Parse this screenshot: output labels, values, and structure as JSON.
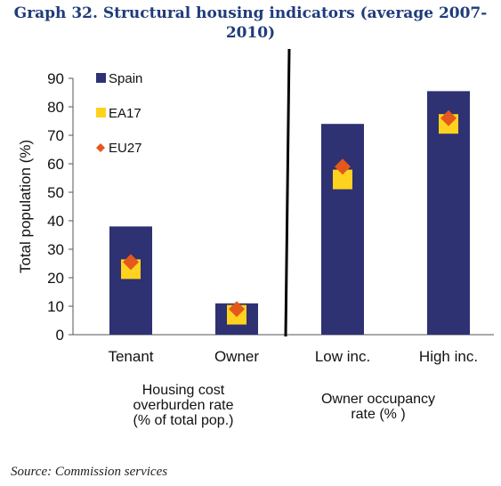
{
  "title_line1": "Graph 32. Structural housing indicators (average 2007-",
  "title_line2": "2010)",
  "source": "Source: Commission services",
  "chart_data": {
    "type": "bar",
    "categories": [
      "Tenant",
      "Owner",
      "Low inc.",
      "High inc."
    ],
    "series": [
      {
        "name": "Spain",
        "marker": "bar",
        "color": "#2e3172",
        "values": [
          38,
          11,
          74,
          85.5
        ]
      },
      {
        "name": "EA17",
        "marker": "square",
        "color": "#ffd21f",
        "values": [
          23,
          7,
          54.5,
          74
        ]
      },
      {
        "name": "EU27",
        "marker": "diamond",
        "color": "#e4581c",
        "values": [
          25.5,
          9,
          59,
          76
        ]
      }
    ],
    "ylabel": "Total population (%)",
    "ylim": [
      0,
      90
    ],
    "yticks": [
      0,
      10,
      20,
      30,
      40,
      50,
      60,
      70,
      80,
      90
    ],
    "group_labels": [
      {
        "lines": [
          "Housing cost",
          "overburden rate",
          "(% of total pop.)"
        ]
      },
      {
        "lines": [
          "Owner occupancy",
          "rate (% )"
        ]
      }
    ],
    "legend_position": "top-left",
    "grid": false
  }
}
